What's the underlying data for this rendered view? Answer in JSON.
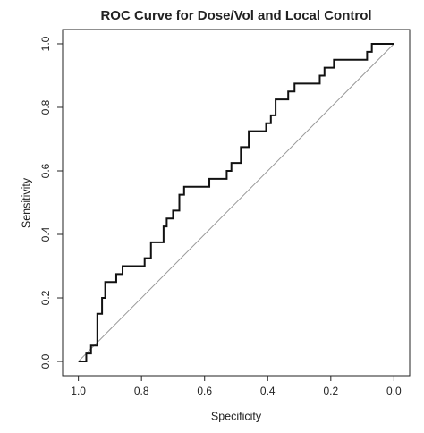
{
  "chart_data": {
    "type": "line",
    "title": "ROC Curve for Dose/Vol and Local Control",
    "x_label": "Specificity",
    "y_label": "Sensitivity",
    "x": [
      1.0,
      0.975,
      0.975,
      0.96,
      0.96,
      0.94,
      0.94,
      0.925,
      0.925,
      0.915,
      0.915,
      0.88,
      0.88,
      0.86,
      0.86,
      0.79,
      0.79,
      0.77,
      0.77,
      0.73,
      0.73,
      0.72,
      0.72,
      0.7,
      0.7,
      0.68,
      0.68,
      0.665,
      0.665,
      0.585,
      0.585,
      0.53,
      0.53,
      0.515,
      0.515,
      0.485,
      0.485,
      0.46,
      0.46,
      0.405,
      0.405,
      0.39,
      0.39,
      0.375,
      0.375,
      0.335,
      0.335,
      0.315,
      0.315,
      0.235,
      0.235,
      0.22,
      0.22,
      0.19,
      0.19,
      0.085,
      0.085,
      0.07,
      0.07,
      0.0
    ],
    "values": [
      0.0,
      0.0,
      0.025,
      0.025,
      0.05,
      0.05,
      0.15,
      0.15,
      0.2,
      0.2,
      0.25,
      0.25,
      0.275,
      0.275,
      0.3,
      0.3,
      0.325,
      0.325,
      0.375,
      0.375,
      0.425,
      0.425,
      0.45,
      0.45,
      0.475,
      0.475,
      0.525,
      0.525,
      0.55,
      0.55,
      0.575,
      0.575,
      0.6,
      0.6,
      0.625,
      0.625,
      0.675,
      0.675,
      0.725,
      0.725,
      0.75,
      0.75,
      0.775,
      0.775,
      0.825,
      0.825,
      0.85,
      0.85,
      0.875,
      0.875,
      0.9,
      0.9,
      0.925,
      0.925,
      0.95,
      0.95,
      0.975,
      0.975,
      1.0,
      1.0
    ],
    "color": "#111111",
    "reference_line": true,
    "reference_color": "#999999",
    "xlim": [
      1.05,
      -0.05
    ],
    "ylim": [
      -0.045,
      1.045
    ],
    "xticks": [
      {
        "value": 1,
        "label": "1.0"
      },
      0.8,
      0.6,
      0.4,
      0.2,
      {
        "value": 0,
        "label": "0.0"
      }
    ],
    "yticks": [
      {
        "value": 0,
        "label": "0.0"
      },
      0.2,
      0.4,
      0.6,
      0.8,
      {
        "value": 1,
        "label": "1.0"
      }
    ]
  }
}
